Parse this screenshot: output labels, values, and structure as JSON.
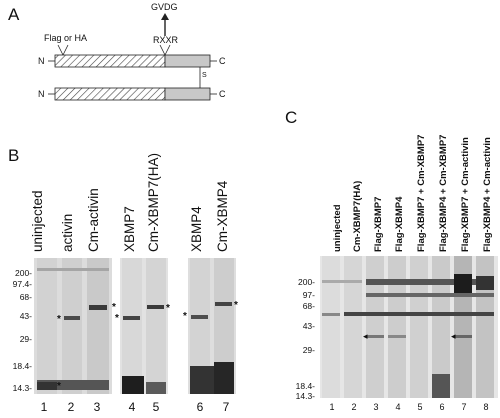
{
  "panels": {
    "A": {
      "letter": "A",
      "tag_label": "Flag or HA",
      "site_label": "RXXR",
      "product_label": "GVDG",
      "n_terminus": "N",
      "c_terminus": "C",
      "disulfide_label": "S"
    },
    "B": {
      "letter": "B",
      "lanes": [
        "uninjected",
        "activin",
        "Cm-activin",
        "XBMP7",
        "Cm-XBMP7(HA)",
        "XBMP4",
        "Cm-XBMP4"
      ],
      "lane_numbers": [
        "1",
        "2",
        "3",
        "4",
        "5",
        "6",
        "7"
      ],
      "markers": [
        "200-",
        "97.4-",
        "68-",
        "43-",
        "29-",
        "18.4-",
        "14.3-"
      ]
    },
    "C": {
      "letter": "C",
      "lanes": [
        "uninjected",
        "Cm-XBMP7(HA)",
        "Flag-XBMP7",
        "Flag-XBMP4",
        "Flag-XBMP7 + Cm-XBMP7",
        "Flag-XBMP4 + Cm-XBMP7",
        "Flag-XBMP7 + Cm-activin",
        "Flag-XBMP4 + Cm-activin"
      ],
      "lane_numbers": [
        "1",
        "2",
        "3",
        "4",
        "5",
        "6",
        "7",
        "8"
      ],
      "markers": [
        "200-",
        "97-",
        "68-",
        "43-",
        "29-",
        "18.4-",
        "14.3-"
      ]
    }
  },
  "band_mark": "*",
  "arrow_mark": "◂"
}
